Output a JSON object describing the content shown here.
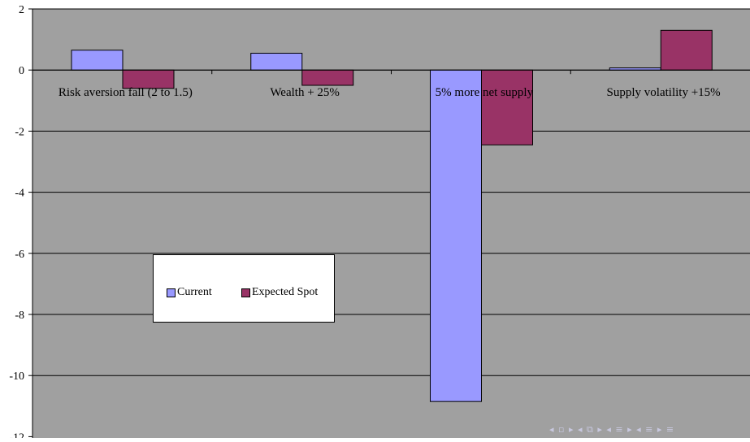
{
  "chart_data": {
    "type": "bar",
    "categories": [
      "Risk aversion fall (2 to 1.5)",
      "Wealth + 25%",
      "5% more net supply",
      "Supply volatility +15%"
    ],
    "series": [
      {
        "name": "Current",
        "color": "#9999ff",
        "values": [
          0.65,
          0.55,
          -10.85,
          0.07
        ]
      },
      {
        "name": "Expected Spot",
        "color": "#993366",
        "values": [
          -0.6,
          -0.5,
          -2.45,
          1.3
        ]
      }
    ],
    "title": "",
    "xlabel": "",
    "ylabel": "",
    "ylim": [
      -12,
      2
    ],
    "yticks": [
      2,
      0,
      -2,
      -4,
      -6,
      -8,
      -10
    ],
    "grid": true,
    "legend_position": "center-left",
    "plot_background": "#a0a0a0"
  },
  "legend": {
    "current": "Current",
    "expected_spot": "Expected Spot"
  },
  "nav_symbols": "◂ ▫ ▸ ◂ ⧉ ▸ ◂ ≡ ▸ ◂ ≡ ▸    ≡"
}
